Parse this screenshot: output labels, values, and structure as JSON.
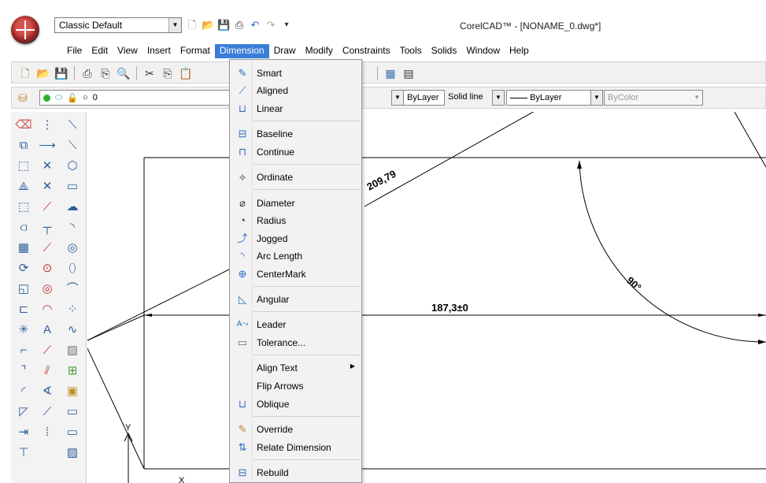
{
  "window": {
    "title": "CorelCAD™ - [NONAME_0.dwg*]",
    "workspace": "Classic Default"
  },
  "menubar": [
    {
      "label": "File"
    },
    {
      "label": "Edit"
    },
    {
      "label": "View"
    },
    {
      "label": "Insert"
    },
    {
      "label": "Format"
    },
    {
      "label": "Dimension"
    },
    {
      "label": "Draw"
    },
    {
      "label": "Modify"
    },
    {
      "label": "Constraints"
    },
    {
      "label": "Tools"
    },
    {
      "label": "Solids"
    },
    {
      "label": "Window"
    },
    {
      "label": "Help"
    }
  ],
  "properties_bar": {
    "layer": "0",
    "color": "ByLayer",
    "linetype_name": "Solid line",
    "linetype": "ByLayer",
    "lineweight": "ByColor"
  },
  "dimension_menu": {
    "items": [
      {
        "label": "Smart",
        "icon": "smart-dimension-icon"
      },
      {
        "label": "Aligned",
        "icon": "aligned-dimension-icon"
      },
      {
        "label": "Linear",
        "icon": "linear-dimension-icon"
      },
      {
        "label": "Baseline",
        "icon": "baseline-dimension-icon"
      },
      {
        "label": "Continue",
        "icon": "continue-dimension-icon"
      },
      {
        "label": "Ordinate",
        "icon": "ordinate-dimension-icon"
      },
      {
        "label": "Diameter",
        "icon": "diameter-dimension-icon"
      },
      {
        "label": "Radius",
        "icon": "radius-dimension-icon"
      },
      {
        "label": "Jogged",
        "icon": "jogged-dimension-icon"
      },
      {
        "label": "Arc Length",
        "icon": "arc-length-icon"
      },
      {
        "label": "CenterMark",
        "icon": "center-mark-icon"
      },
      {
        "label": "Angular",
        "icon": "angular-dimension-icon"
      },
      {
        "label": "Leader",
        "icon": "leader-icon"
      },
      {
        "label": "Tolerance...",
        "icon": "tolerance-icon"
      },
      {
        "label": "Align Text",
        "icon": ""
      },
      {
        "label": "Flip Arrows",
        "icon": ""
      },
      {
        "label": "Oblique",
        "icon": "oblique-icon"
      },
      {
        "label": "Override",
        "icon": "override-icon"
      },
      {
        "label": "Relate Dimension",
        "icon": "relate-dimension-icon"
      },
      {
        "label": "Rebuild",
        "icon": "rebuild-icon"
      }
    ]
  },
  "drawing": {
    "aligned_dim": "209,79",
    "linear_dim": "187,3±0",
    "angular_dim": "90°",
    "ucs_y": "Y",
    "ucs_x": "X"
  }
}
